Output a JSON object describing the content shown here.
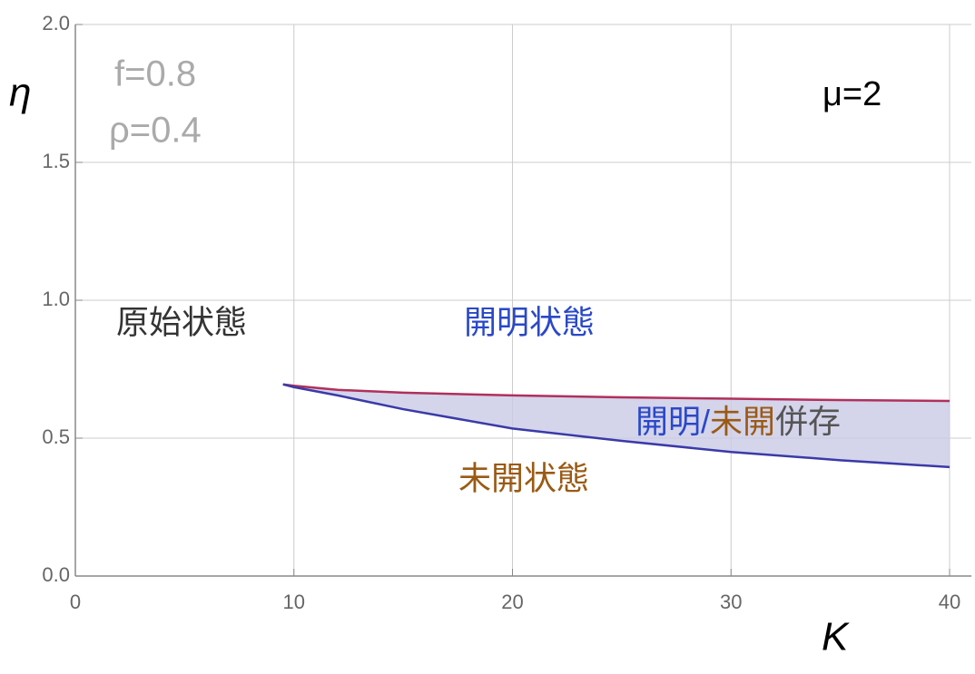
{
  "chart_data": {
    "type": "line",
    "x": [
      9.5,
      10,
      12,
      15,
      20,
      25,
      30,
      35,
      40
    ],
    "series": [
      {
        "color": "#b0305a",
        "values": [
          0.695,
          0.69,
          0.675,
          0.665,
          0.655,
          0.648,
          0.643,
          0.638,
          0.635
        ]
      },
      {
        "color": "#3a3aa8",
        "values": [
          0.695,
          0.685,
          0.655,
          0.605,
          0.535,
          0.49,
          0.45,
          0.42,
          0.395
        ]
      }
    ],
    "fill_between": true,
    "fill_color": "#c9c9e6",
    "xlim": [
      0,
      41
    ],
    "xticks": [
      0,
      10,
      20,
      30,
      40
    ],
    "ylim": [
      0,
      2
    ],
    "yticks": [
      {
        "value": 0,
        "label": "0.0"
      },
      {
        "value": 0.5,
        "label": "0.5"
      },
      {
        "value": 1,
        "label": "1.0"
      },
      {
        "value": 1.5,
        "label": "1.5"
      },
      {
        "value": 2,
        "label": "2.0"
      }
    ],
    "grid": true,
    "xlabel": "K",
    "ylabel": "η",
    "annotations": {
      "f": "f=0.8",
      "rho": "ρ=0.4",
      "mu": "μ=2",
      "primitive": "原始状態",
      "enlightened": "開明状態",
      "unenlightened": "未開状態",
      "coexist": [
        "開明",
        "/",
        "未開",
        "併存"
      ]
    }
  }
}
